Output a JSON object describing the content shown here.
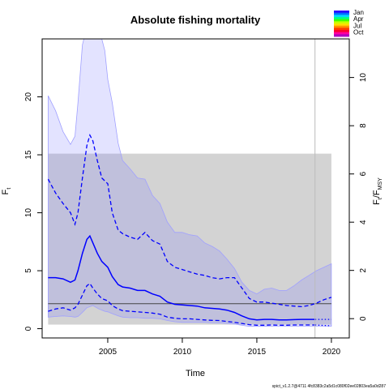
{
  "chart_data": {
    "type": "line",
    "title": "Absolute fishing mortality",
    "xlabel": "Time",
    "ylabel_left": "F",
    "ylabel_left_sub": "t",
    "ylabel_right": "F",
    "ylabel_right_sub1": "t",
    "ylabel_right_sep": "/F",
    "ylabel_right_sub2": "MSY",
    "footnote": "spict_v1.2.7@4711 4fc8383c2a5d1c080f02ee02803ea5a0d287",
    "xlim": [
      2000.6,
      2021.2
    ],
    "ylim": [
      -0.8,
      25.0
    ],
    "right_ylim": [
      -0.8,
      11.6
    ],
    "x_ticks": [
      2005,
      2010,
      2015,
      2020
    ],
    "y_ticks": [
      0,
      5,
      10,
      15,
      20
    ],
    "right_ticks": [
      0,
      2,
      4,
      6,
      8,
      10
    ],
    "grey_band": {
      "x": [
        2001.0,
        2020.0
      ],
      "y": [
        0.35,
        15.1
      ]
    },
    "fmsy_line": {
      "x": [
        2001.0,
        2020.0
      ],
      "y": 2.15
    },
    "vertical_marker_x": 2018.9,
    "outer_ci": {
      "x": [
        2001.0,
        2001.5,
        2002.0,
        2002.5,
        2002.8,
        2003.0,
        2003.3,
        2003.6,
        2004.0,
        2004.4,
        2004.8,
        2005.0,
        2005.3,
        2005.7,
        2006.0,
        2006.5,
        2007.0,
        2007.5,
        2008.0,
        2008.5,
        2009.0,
        2009.5,
        2010.0,
        2010.5,
        2011.0,
        2011.5,
        2012.0,
        2012.5,
        2013.0,
        2013.5,
        2014.0,
        2014.5,
        2015.0,
        2015.5,
        2016.0,
        2016.5,
        2017.0,
        2017.5,
        2018.0,
        2018.5,
        2019.0,
        2019.5,
        2020.0
      ],
      "upper": [
        20.1,
        18.8,
        17.0,
        15.9,
        16.6,
        19.5,
        24.5,
        26.0,
        27.0,
        26.0,
        24.0,
        21.5,
        19.5,
        16.0,
        14.5,
        13.8,
        13.0,
        12.9,
        11.5,
        10.8,
        9.2,
        8.3,
        8.3,
        8.1,
        8.0,
        7.4,
        7.1,
        6.7,
        6.0,
        5.2,
        4.0,
        3.3,
        3.0,
        3.4,
        3.5,
        3.3,
        3.3,
        3.7,
        4.2,
        4.6,
        5.0,
        5.3,
        5.6
      ],
      "lower": [
        1.0,
        1.05,
        1.1,
        1.05,
        1.0,
        1.05,
        1.4,
        1.8,
        2.0,
        1.7,
        1.5,
        1.45,
        1.3,
        1.1,
        1.0,
        0.95,
        0.95,
        0.9,
        0.9,
        0.85,
        0.7,
        0.6,
        0.55,
        0.55,
        0.55,
        0.55,
        0.5,
        0.5,
        0.45,
        0.4,
        0.3,
        0.2,
        0.2,
        0.2,
        0.22,
        0.22,
        0.22,
        0.22,
        0.22,
        0.22,
        0.22,
        0.22,
        0.22
      ]
    },
    "series": [
      {
        "style": "solid",
        "x": [
          2001.0,
          2001.5,
          2002.0,
          2002.5,
          2002.8,
          2003.0,
          2003.3,
          2003.6,
          2003.8,
          2004.0,
          2004.3,
          2004.6,
          2005.0,
          2005.3,
          2005.7,
          2006.0,
          2006.5,
          2007.0,
          2007.5,
          2008.0,
          2008.5,
          2009.0,
          2009.5,
          2010.0,
          2010.5,
          2011.0,
          2011.5,
          2012.0,
          2012.5,
          2013.0,
          2013.5,
          2014.0,
          2014.5,
          2015.0,
          2015.5,
          2016.0,
          2016.5,
          2017.0,
          2017.5,
          2018.0,
          2018.5,
          2018.9
        ],
        "y": [
          4.4,
          4.4,
          4.3,
          4.0,
          4.2,
          5.0,
          6.5,
          7.7,
          8.0,
          7.4,
          6.5,
          5.8,
          5.3,
          4.5,
          3.8,
          3.6,
          3.5,
          3.3,
          3.3,
          3.0,
          2.8,
          2.3,
          2.1,
          2.05,
          2.0,
          1.95,
          1.8,
          1.75,
          1.7,
          1.6,
          1.4,
          1.1,
          0.85,
          0.75,
          0.8,
          0.8,
          0.75,
          0.75,
          0.78,
          0.8,
          0.8,
          0.8
        ]
      },
      {
        "style": "dotted",
        "x": [
          2018.9,
          2019.5,
          2020.0
        ],
        "y": [
          0.8,
          0.8,
          0.8
        ]
      },
      {
        "style": "dashed",
        "x": [
          2001.0,
          2001.5,
          2002.0,
          2002.5,
          2002.8,
          2003.0,
          2003.3,
          2003.6,
          2003.8,
          2004.0,
          2004.3,
          2004.6,
          2005.0,
          2005.3,
          2005.7,
          2006.0,
          2006.5,
          2007.0,
          2007.5,
          2008.0,
          2008.5,
          2009.0,
          2009.5,
          2010.0,
          2010.5,
          2011.0,
          2011.5,
          2012.0,
          2012.5,
          2013.0,
          2013.5,
          2014.0,
          2014.5,
          2015.0,
          2015.5,
          2016.0,
          2016.5,
          2017.0,
          2017.5,
          2018.0,
          2018.5,
          2019.0,
          2019.5,
          2020.0
        ],
        "y": [
          12.9,
          11.7,
          10.8,
          10.0,
          9.0,
          10.0,
          13.0,
          15.8,
          16.7,
          16.2,
          14.5,
          13.0,
          12.5,
          10.0,
          8.5,
          8.2,
          7.9,
          7.7,
          8.3,
          7.6,
          7.3,
          5.8,
          5.3,
          5.1,
          4.9,
          4.7,
          4.6,
          4.4,
          4.3,
          4.4,
          4.4,
          3.5,
          2.6,
          2.3,
          2.3,
          2.2,
          2.1,
          2.0,
          1.95,
          1.9,
          2.0,
          2.2,
          2.5,
          2.7
        ]
      },
      {
        "style": "dashed",
        "x": [
          2001.0,
          2001.5,
          2002.0,
          2002.5,
          2002.8,
          2003.0,
          2003.3,
          2003.6,
          2003.8,
          2004.0,
          2004.3,
          2004.6,
          2005.0,
          2005.3,
          2005.7,
          2006.0,
          2006.5,
          2007.0,
          2007.5,
          2008.0,
          2008.5,
          2009.0,
          2009.5,
          2010.0,
          2010.5,
          2011.0,
          2011.5,
          2012.0,
          2012.5,
          2013.0,
          2013.5,
          2014.0,
          2014.5,
          2015.0,
          2015.5,
          2016.0,
          2016.5,
          2017.0,
          2017.5,
          2018.0,
          2018.5,
          2018.9
        ],
        "y": [
          1.5,
          1.7,
          1.8,
          1.6,
          1.8,
          2.1,
          2.9,
          3.7,
          3.9,
          3.5,
          3.0,
          2.6,
          2.4,
          2.0,
          1.7,
          1.55,
          1.5,
          1.45,
          1.4,
          1.35,
          1.25,
          1.0,
          0.9,
          0.85,
          0.85,
          0.8,
          0.75,
          0.72,
          0.7,
          0.62,
          0.55,
          0.45,
          0.35,
          0.3,
          0.3,
          0.32,
          0.3,
          0.3,
          0.32,
          0.32,
          0.32,
          0.32
        ]
      },
      {
        "style": "dotted",
        "x": [
          2018.9,
          2019.5,
          2020.0
        ],
        "y": [
          0.32,
          0.28,
          0.25
        ]
      }
    ],
    "legend": {
      "placement": "top-right",
      "labels": [
        "Jan",
        "Apr",
        "Jul",
        "Oct"
      ],
      "colors": [
        "#2a00ff",
        "#006fff",
        "#00d8ff",
        "#00ff8a",
        "#40ff00",
        "#c8ff00",
        "#ffe000",
        "#ff9000",
        "#ff3a00",
        "#ff0030",
        "#ff00a0",
        "#b000c0"
      ]
    },
    "colors": {
      "line": "#0000ff",
      "ci_fill": "#8080ff",
      "ci_stroke": "#a0a0ff",
      "band": "#d3d3d3",
      "fmsy": "#444444"
    }
  }
}
